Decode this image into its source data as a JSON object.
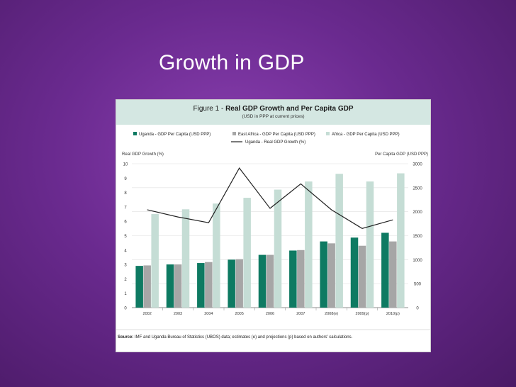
{
  "slide": {
    "title": "Growth in GDP"
  },
  "figure": {
    "label": "Figure 1 - ",
    "title_bold": "Real GDP Growth and Per Capita GDP",
    "subtitle": "(USD in PPP at current prices)",
    "source_label": "Source:",
    "source_text": " IMF and Uganda Bureau of Statistics (UBOS) data; estimates (e) and projections (p) based on authors' calculations."
  },
  "colors": {
    "uganda_bar": "#0e7a62",
    "east_africa_bar": "#a6a6a6",
    "africa_bar": "#c5ddd5",
    "growth_line": "#222222",
    "header_band": "#d4e7e2"
  },
  "chart_data": {
    "type": "bar",
    "categories": [
      "2002",
      "2003",
      "2004",
      "2005",
      "2006",
      "2007",
      "2008(e)",
      "2009(p)",
      "2010(p)"
    ],
    "series": [
      {
        "name": "Uganda - GDP Per Capita (USD PPP)",
        "axis": "right",
        "values": [
          870,
          900,
          930,
          1000,
          1100,
          1190,
          1380,
          1460,
          1560
        ]
      },
      {
        "name": "East Africa - GDP Per Capita (USD PPP)",
        "axis": "right",
        "values": [
          880,
          900,
          950,
          1010,
          1100,
          1200,
          1340,
          1290,
          1380
        ]
      },
      {
        "name": "Africa - GDP Per Capita (USD PPP)",
        "axis": "right",
        "values": [
          1950,
          2050,
          2170,
          2290,
          2460,
          2630,
          2790,
          2630,
          2800
        ]
      },
      {
        "name": "Uganda - Real GDP Growth (%)",
        "type": "line",
        "axis": "left",
        "values": [
          6.8,
          6.3,
          5.9,
          9.7,
          6.9,
          8.6,
          6.8,
          5.5,
          6.1
        ]
      }
    ],
    "ylabel_left": "Real GDP Growth (%)",
    "ylabel_right": "Per Capita GDP (USD PPP)",
    "ylim_left": [
      0,
      10
    ],
    "ylim_right": [
      0,
      3000
    ],
    "yticks_left": [
      "0",
      "1",
      "2",
      "3",
      "4",
      "5",
      "6",
      "7",
      "8",
      "9",
      "10"
    ],
    "yticks_right": [
      "0",
      "500",
      "1000",
      "1500",
      "2000",
      "2500",
      "3000"
    ],
    "grid": true,
    "legend_position": "top"
  }
}
